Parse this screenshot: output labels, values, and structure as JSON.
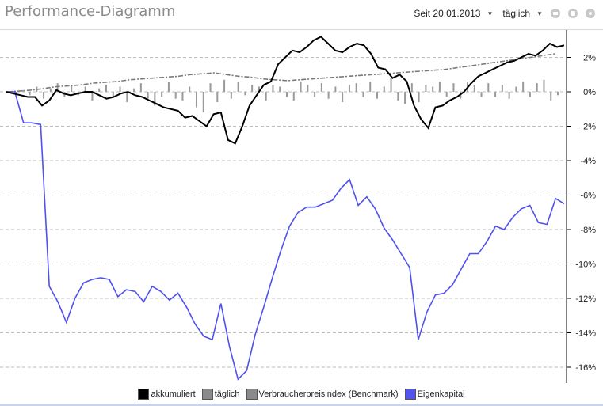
{
  "title": "Performance-Diagramm",
  "controls": {
    "since_label": "Seit 20.01.2013",
    "interval_label": "täglich",
    "icons": [
      "previous-icon",
      "calendar-icon",
      "gear-icon"
    ]
  },
  "chart_data": {
    "type": "line",
    "yaxis": {
      "position": "right",
      "ylim": [
        -17,
        3.3
      ],
      "ticks": [
        {
          "value": 2,
          "label": "2%"
        },
        {
          "value": 0,
          "label": "0%"
        },
        {
          "value": -2,
          "label": "-2%"
        },
        {
          "value": -4,
          "label": "-4%"
        },
        {
          "value": -6,
          "label": "-6%"
        },
        {
          "value": -8,
          "label": "-8%"
        },
        {
          "value": -10,
          "label": "-10%"
        },
        {
          "value": -12,
          "label": "-12%"
        },
        {
          "value": -14,
          "label": "-14%"
        },
        {
          "value": -16,
          "label": "-16%"
        }
      ]
    },
    "grid": true,
    "legend_position": "bottom",
    "series": [
      {
        "name": "akkumuliert",
        "color": "#000000",
        "values": [
          0.0,
          -0.1,
          -0.2,
          -0.3,
          -0.3,
          -0.8,
          -0.5,
          0.1,
          -0.1,
          -0.2,
          -0.1,
          0.0,
          0.0,
          -0.2,
          -0.4,
          -0.3,
          -0.1,
          0.0,
          -0.2,
          -0.3,
          -0.5,
          -0.7,
          -0.9,
          -1.0,
          -1.1,
          -1.5,
          -1.4,
          -1.7,
          -2.0,
          -1.3,
          -1.2,
          -2.8,
          -3.0,
          -2.0,
          -0.8,
          -0.2,
          0.4,
          0.6,
          1.6,
          2.0,
          2.4,
          2.3,
          2.6,
          3.0,
          3.2,
          2.8,
          2.4,
          2.3,
          2.6,
          2.8,
          2.7,
          2.2,
          1.4,
          1.3,
          0.8,
          1.0,
          0.6,
          -0.8,
          -1.6,
          -2.1,
          -0.9,
          -0.8,
          -0.5,
          -0.3,
          0.0,
          0.5,
          0.9,
          1.1,
          1.3,
          1.5,
          1.7,
          1.8,
          2.0,
          2.2,
          2.1,
          2.4,
          2.8,
          2.6,
          2.7
        ]
      },
      {
        "name": "täglich",
        "color": "#9a9a9a",
        "values": [
          0.0,
          0.1,
          -0.2,
          0.3,
          -0.4,
          0.2,
          0.5,
          -0.3,
          0.4,
          -0.2,
          0.3,
          -0.5,
          0.2,
          0.4,
          -0.3,
          0.3,
          -0.6,
          0.2,
          0.5,
          -0.4,
          -0.8,
          -0.3,
          0.6,
          -0.4,
          -0.5,
          0.3,
          -0.9,
          -1.2,
          0.5,
          -0.6,
          0.7,
          -0.4,
          0.6,
          -0.2,
          0.4,
          0.3,
          -0.5,
          0.4,
          0.3,
          -0.3,
          -0.5,
          0.6,
          0.4,
          -0.3,
          0.5,
          -0.4,
          0.3,
          -0.6,
          0.4,
          0.5,
          -0.3,
          0.6,
          -0.4,
          0.3,
          0.8,
          -0.5,
          -0.7,
          0.5,
          -0.6,
          0.4,
          0.3,
          0.6,
          -0.3,
          0.5,
          -0.4,
          0.6,
          0.4,
          -0.3,
          0.5,
          -0.3,
          0.4,
          -0.4,
          0.3,
          0.6,
          -0.3,
          0.5,
          0.7,
          -0.5,
          -0.2
        ]
      },
      {
        "name": "Verbraucherpreisindex (Benchmark)",
        "color": "#7a7a7a",
        "values": [
          0.0,
          0.05,
          0.1,
          0.2,
          0.3,
          0.35,
          0.4,
          0.5,
          0.55,
          0.6,
          0.7,
          0.75,
          0.8,
          0.85,
          0.9,
          1.0,
          1.05,
          1.1,
          1.0,
          0.9,
          0.85,
          0.75,
          0.7,
          0.65,
          0.7,
          0.75,
          0.8,
          0.85,
          0.9,
          0.95,
          1.0,
          1.05,
          1.1,
          1.15,
          1.2,
          1.25,
          1.3,
          1.4,
          1.5,
          1.6,
          1.7,
          1.8,
          1.9,
          2.0,
          2.1,
          2.2
        ]
      },
      {
        "name": "Eigenkapital",
        "color": "#5050f0",
        "values": [
          0.0,
          0.0,
          -1.8,
          -1.8,
          -1.9,
          -11.3,
          -12.2,
          -13.4,
          -12.0,
          -11.1,
          -10.9,
          -10.8,
          -10.9,
          -11.9,
          -11.5,
          -11.6,
          -12.2,
          -11.3,
          -11.6,
          -12.1,
          -11.7,
          -12.5,
          -13.5,
          -14.2,
          -14.4,
          -12.3,
          -14.8,
          -16.7,
          -16.2,
          -14.1,
          -12.5,
          -10.8,
          -9.2,
          -7.8,
          -7.0,
          -6.7,
          -6.7,
          -6.5,
          -6.3,
          -5.6,
          -5.1,
          -6.6,
          -6.1,
          -6.8,
          -7.9,
          -8.6,
          -9.4,
          -10.2,
          -14.4,
          -12.8,
          -11.8,
          -11.7,
          -11.2,
          -10.3,
          -9.4,
          -9.4,
          -8.7,
          -7.8,
          -8.0,
          -7.3,
          -6.8,
          -6.6,
          -7.6,
          -7.7,
          -6.2,
          -6.5
        ]
      }
    ]
  },
  "legend": [
    {
      "label": "akkumuliert",
      "color": "#000000"
    },
    {
      "label": "täglich",
      "color": "#8a8a8a"
    },
    {
      "label": "Verbraucherpreisindex (Benchmark)",
      "color": "#8a8a8a"
    },
    {
      "label": "Eigenkapital",
      "color": "#5555ee"
    }
  ]
}
